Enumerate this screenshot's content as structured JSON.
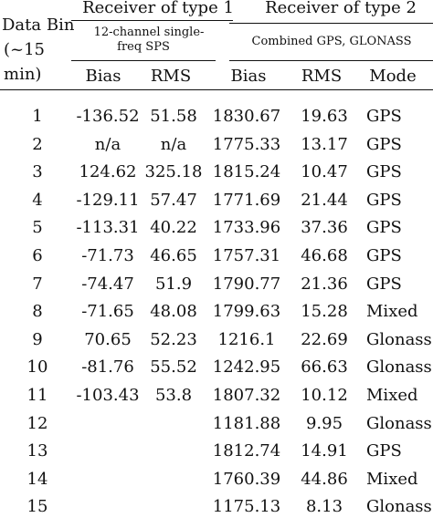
{
  "header": {
    "data_bin": "Data Bin",
    "interval_line1": "(~15",
    "interval_line2": "min)",
    "receiver1": "Receiver of type 1",
    "receiver1_sub_line1": "12-channel single-",
    "receiver1_sub_line2": "freq SPS",
    "receiver2": "Receiver of type 2",
    "receiver2_sub": "Combined GPS, GLONASS",
    "bias1": "Bias",
    "rms1": "RMS",
    "bias2": "Bias",
    "rms2": "RMS",
    "mode": "Mode"
  },
  "rows": [
    {
      "bin": "1",
      "bias1": "-136.52",
      "rms1": "51.58",
      "bias2": "1830.67",
      "rms2": "19.63",
      "mode": "GPS"
    },
    {
      "bin": "2",
      "bias1": "n/a",
      "rms1": "n/a",
      "bias2": "1775.33",
      "rms2": "13.17",
      "mode": "GPS"
    },
    {
      "bin": "3",
      "bias1": "124.62",
      "rms1": "325.18",
      "bias2": "1815.24",
      "rms2": "10.47",
      "mode": "GPS"
    },
    {
      "bin": "4",
      "bias1": "-129.11",
      "rms1": "57.47",
      "bias2": "1771.69",
      "rms2": "21.44",
      "mode": "GPS"
    },
    {
      "bin": "5",
      "bias1": "-113.31",
      "rms1": "40.22",
      "bias2": "1733.96",
      "rms2": "37.36",
      "mode": "GPS"
    },
    {
      "bin": "6",
      "bias1": "-71.73",
      "rms1": "46.65",
      "bias2": "1757.31",
      "rms2": "46.68",
      "mode": "GPS"
    },
    {
      "bin": "7",
      "bias1": "-74.47",
      "rms1": "51.9",
      "bias2": "1790.77",
      "rms2": "21.36",
      "mode": "GPS"
    },
    {
      "bin": "8",
      "bias1": "-71.65",
      "rms1": "48.08",
      "bias2": "1799.63",
      "rms2": "15.28",
      "mode": "Mixed"
    },
    {
      "bin": "9",
      "bias1": "70.65",
      "rms1": "52.23",
      "bias2": "1216.1",
      "rms2": "22.69",
      "mode": "Glonass"
    },
    {
      "bin": "10",
      "bias1": "-81.76",
      "rms1": "55.52",
      "bias2": "1242.95",
      "rms2": "66.63",
      "mode": "Glonass"
    },
    {
      "bin": "11",
      "bias1": "-103.43",
      "rms1": "53.8",
      "bias2": "1807.32",
      "rms2": "10.12",
      "mode": "Mixed"
    },
    {
      "bin": "12",
      "bias1": "",
      "rms1": "",
      "bias2": "1181.88",
      "rms2": "9.95",
      "mode": "Glonass"
    },
    {
      "bin": "13",
      "bias1": "",
      "rms1": "",
      "bias2": "1812.74",
      "rms2": "14.91",
      "mode": "GPS"
    },
    {
      "bin": "14",
      "bias1": "",
      "rms1": "",
      "bias2": "1760.39",
      "rms2": "44.86",
      "mode": "Mixed"
    },
    {
      "bin": "15",
      "bias1": "",
      "rms1": "",
      "bias2": "1175.13",
      "rms2": "8.13",
      "mode": "Glonass"
    }
  ]
}
